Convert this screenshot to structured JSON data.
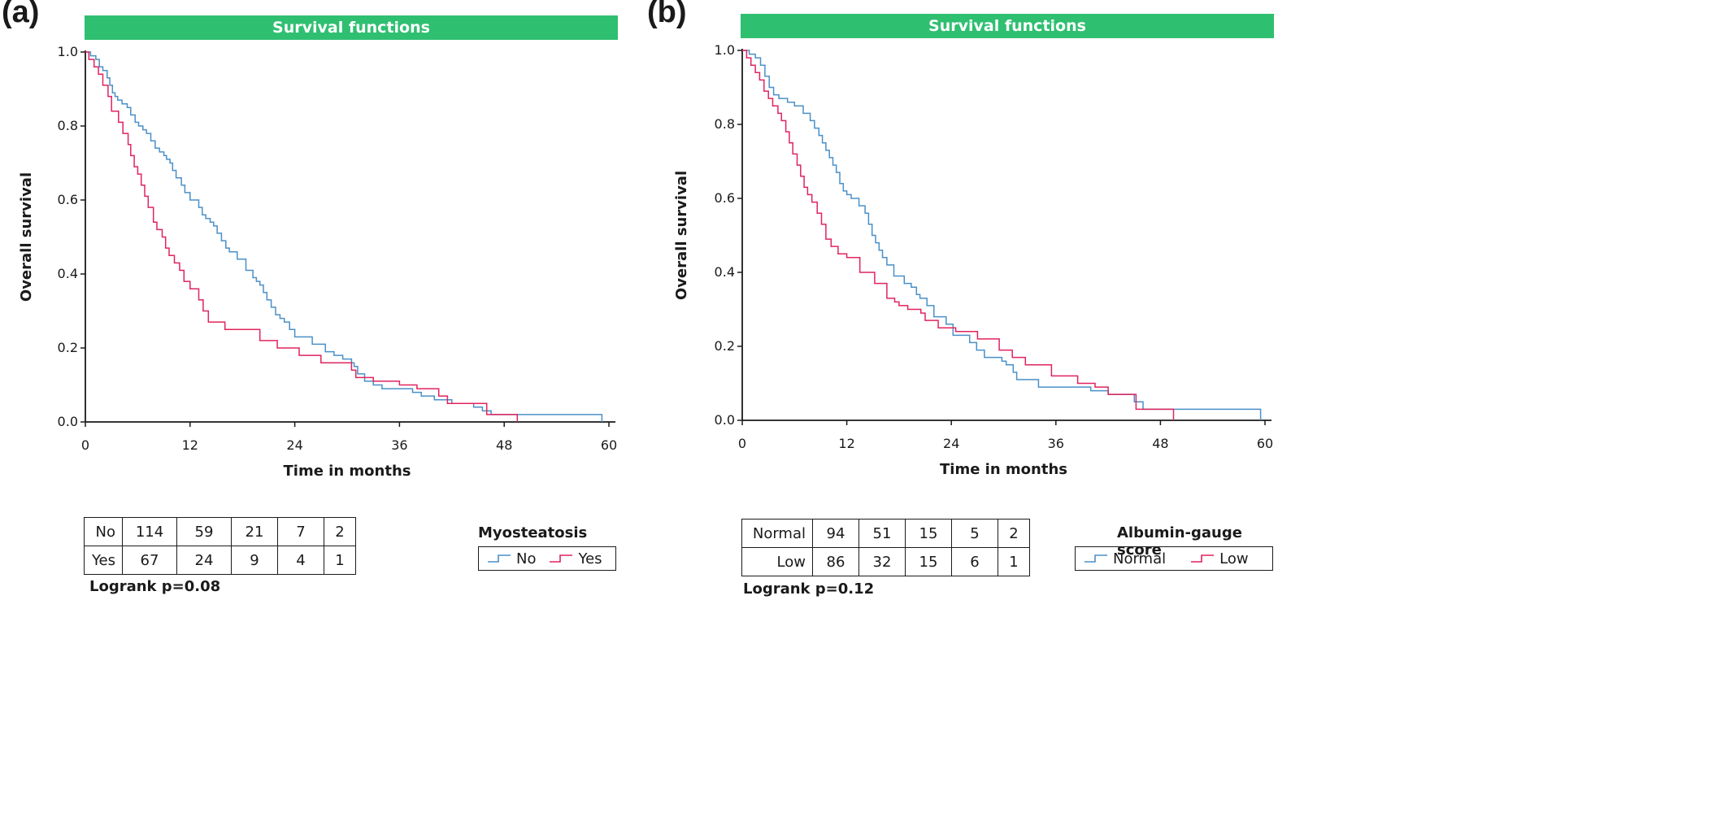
{
  "panels": [
    {
      "label": "(a)",
      "banner": "Survival functions",
      "ylabel": "Overall survival",
      "xlabel": "Time in months",
      "logrank": "Logrank p=0.08",
      "legend": {
        "title": "Myosteatosis",
        "entries": [
          {
            "name": "No",
            "color": "#4a90c8"
          },
          {
            "name": "Yes",
            "color": "#e0245e"
          }
        ]
      },
      "risk_table": [
        {
          "label": "No",
          "values": [
            "114",
            "59",
            "21",
            "7",
            "2"
          ]
        },
        {
          "label": "Yes",
          "values": [
            "67",
            "24",
            "9",
            "4",
            "1"
          ]
        }
      ]
    },
    {
      "label": "(b)",
      "banner": "Survival functions",
      "ylabel": "Overall survival",
      "xlabel": "Time in months",
      "logrank": "Logrank p=0.12",
      "legend": {
        "title": "Albumin-gauge score",
        "entries": [
          {
            "name": "Normal",
            "color": "#4a90c8"
          },
          {
            "name": "Low",
            "color": "#e0245e"
          }
        ]
      },
      "risk_table": [
        {
          "label": "Normal",
          "values": [
            "94",
            "51",
            "15",
            "5",
            "2"
          ]
        },
        {
          "label": "Low",
          "values": [
            "86",
            "32",
            "15",
            "6",
            "1"
          ]
        }
      ]
    }
  ],
  "chart_data": [
    {
      "type": "line",
      "step": true,
      "title": "Survival functions",
      "xlabel": "Time in months",
      "ylabel": "Overall survival",
      "xlim": [
        0,
        60
      ],
      "ylim": [
        0,
        1.0
      ],
      "xticks": [
        0,
        12,
        24,
        36,
        48,
        60
      ],
      "yticks": [
        0.0,
        0.2,
        0.4,
        0.6,
        0.8,
        1.0
      ],
      "ytick_labels": [
        "0.0",
        "0.2",
        "0.4",
        "0.6",
        "0.8",
        "1.0"
      ],
      "legend_title": "Myosteatosis",
      "annotation": "Logrank p=0.08",
      "series": [
        {
          "name": "No",
          "color": "#4a90c8",
          "x": [
            0,
            0.6,
            1.2,
            1.6,
            2.0,
            2.5,
            2.8,
            3.1,
            3.4,
            3.7,
            4.2,
            4.8,
            5.2,
            5.7,
            6.1,
            6.6,
            7.0,
            7.5,
            8.0,
            8.5,
            9.0,
            9.3,
            9.7,
            10.0,
            10.4,
            11.0,
            11.4,
            12.0,
            13.0,
            13.4,
            13.8,
            14.3,
            14.7,
            15.1,
            15.6,
            16.1,
            16.5,
            17.4,
            18.4,
            19.2,
            19.6,
            20.0,
            20.4,
            20.8,
            21.3,
            21.8,
            22.3,
            22.8,
            23.4,
            24.0,
            26.0,
            27.5,
            28.5,
            29.5,
            30.5,
            30.8,
            31.2,
            32.0,
            33.0,
            34.0,
            36.0,
            37.5,
            38.5,
            40.0,
            42.0,
            44.5,
            45.5,
            46.0,
            46.5,
            49.0,
            59.2
          ],
          "y": [
            1.0,
            0.99,
            0.98,
            0.96,
            0.95,
            0.93,
            0.91,
            0.89,
            0.88,
            0.87,
            0.86,
            0.85,
            0.83,
            0.81,
            0.8,
            0.79,
            0.78,
            0.76,
            0.74,
            0.73,
            0.72,
            0.71,
            0.7,
            0.68,
            0.66,
            0.64,
            0.62,
            0.6,
            0.58,
            0.56,
            0.55,
            0.54,
            0.53,
            0.51,
            0.49,
            0.47,
            0.46,
            0.44,
            0.41,
            0.39,
            0.38,
            0.37,
            0.35,
            0.33,
            0.31,
            0.29,
            0.28,
            0.27,
            0.25,
            0.23,
            0.21,
            0.19,
            0.18,
            0.17,
            0.16,
            0.15,
            0.13,
            0.11,
            0.1,
            0.09,
            0.09,
            0.08,
            0.07,
            0.06,
            0.05,
            0.04,
            0.03,
            0.03,
            0.02,
            0.02,
            0.0
          ]
        },
        {
          "name": "Yes",
          "color": "#e0245e",
          "x": [
            0,
            0.4,
            1.0,
            1.5,
            2.0,
            2.6,
            3.0,
            3.8,
            4.3,
            4.9,
            5.2,
            5.6,
            6.0,
            6.4,
            6.8,
            7.2,
            7.8,
            8.2,
            8.8,
            9.2,
            9.6,
            10.2,
            10.8,
            11.3,
            12.0,
            13.0,
            13.5,
            14.1,
            16.0,
            20.0,
            22.0,
            24.5,
            27.0,
            30.5,
            31.0,
            33.0,
            36.0,
            38.0,
            40.5,
            41.5,
            46.0,
            49.5
          ],
          "y": [
            1.0,
            0.98,
            0.96,
            0.94,
            0.91,
            0.88,
            0.84,
            0.81,
            0.78,
            0.75,
            0.72,
            0.69,
            0.67,
            0.64,
            0.61,
            0.58,
            0.54,
            0.52,
            0.5,
            0.47,
            0.45,
            0.43,
            0.41,
            0.38,
            0.36,
            0.33,
            0.3,
            0.27,
            0.25,
            0.22,
            0.2,
            0.18,
            0.16,
            0.14,
            0.12,
            0.11,
            0.1,
            0.09,
            0.07,
            0.05,
            0.02,
            0.0
          ]
        }
      ],
      "risk_table": {
        "times": [
          0,
          12,
          24,
          36,
          48
        ],
        "No": [
          114,
          59,
          21,
          7,
          2
        ],
        "Yes": [
          67,
          24,
          9,
          4,
          1
        ]
      }
    },
    {
      "type": "line",
      "step": true,
      "title": "Survival functions",
      "xlabel": "Time in months",
      "ylabel": "Overall survival",
      "xlim": [
        0,
        60
      ],
      "ylim": [
        0,
        1.0
      ],
      "xticks": [
        0,
        12,
        24,
        36,
        48,
        60
      ],
      "yticks": [
        0.0,
        0.2,
        0.4,
        0.6,
        0.8,
        1.0
      ],
      "ytick_labels": [
        "0.0",
        "0.2",
        "0.4",
        "0.6",
        "0.8",
        "1.0"
      ],
      "legend_title": "Albumin-gauge score",
      "annotation": "Logrank p=0.12",
      "series": [
        {
          "name": "Normal",
          "color": "#4a90c8",
          "x": [
            0,
            0.8,
            1.5,
            2.1,
            2.6,
            3.1,
            3.6,
            4.2,
            5.2,
            6.0,
            7.0,
            7.8,
            8.3,
            8.8,
            9.2,
            9.6,
            10.0,
            10.4,
            10.8,
            11.2,
            11.6,
            12.0,
            12.5,
            13.4,
            14.1,
            14.5,
            14.9,
            15.3,
            15.7,
            16.1,
            16.6,
            17.4,
            18.6,
            19.4,
            20.0,
            20.4,
            21.2,
            22.0,
            23.4,
            24.2,
            26.1,
            26.9,
            27.8,
            29.8,
            30.3,
            31.1,
            31.5,
            34.0,
            35.5,
            38.0,
            40.0,
            42.0,
            45.0,
            46.0,
            59.5
          ],
          "y": [
            1.0,
            0.99,
            0.98,
            0.96,
            0.93,
            0.9,
            0.88,
            0.87,
            0.86,
            0.85,
            0.83,
            0.81,
            0.79,
            0.77,
            0.75,
            0.73,
            0.71,
            0.69,
            0.67,
            0.64,
            0.62,
            0.61,
            0.6,
            0.58,
            0.56,
            0.53,
            0.5,
            0.48,
            0.46,
            0.44,
            0.42,
            0.39,
            0.37,
            0.36,
            0.34,
            0.33,
            0.31,
            0.28,
            0.26,
            0.23,
            0.21,
            0.19,
            0.17,
            0.16,
            0.15,
            0.13,
            0.11,
            0.09,
            0.09,
            0.09,
            0.08,
            0.07,
            0.05,
            0.03,
            0.0
          ]
        },
        {
          "name": "Low",
          "color": "#e0245e",
          "x": [
            0,
            0.5,
            1.0,
            1.5,
            2.0,
            2.5,
            3.0,
            3.5,
            4.1,
            4.5,
            5.0,
            5.4,
            5.8,
            6.3,
            6.7,
            7.1,
            7.5,
            8.0,
            8.6,
            9.1,
            9.6,
            10.2,
            11.0,
            12.0,
            13.5,
            15.2,
            16.6,
            17.5,
            18.0,
            19.0,
            20.5,
            21.0,
            22.5,
            24.5,
            27.0,
            29.5,
            31.0,
            32.5,
            35.5,
            38.5,
            40.5,
            42.0,
            45.2,
            49.5
          ],
          "y": [
            1.0,
            0.98,
            0.96,
            0.94,
            0.92,
            0.89,
            0.87,
            0.85,
            0.83,
            0.81,
            0.78,
            0.75,
            0.72,
            0.69,
            0.66,
            0.63,
            0.61,
            0.59,
            0.56,
            0.53,
            0.49,
            0.47,
            0.45,
            0.44,
            0.4,
            0.37,
            0.33,
            0.32,
            0.31,
            0.3,
            0.29,
            0.27,
            0.25,
            0.24,
            0.22,
            0.19,
            0.17,
            0.15,
            0.12,
            0.1,
            0.09,
            0.07,
            0.03,
            0.0
          ]
        }
      ],
      "risk_table": {
        "times": [
          0,
          12,
          24,
          36,
          48
        ],
        "Normal": [
          94,
          51,
          15,
          5,
          2
        ],
        "Low": [
          86,
          32,
          15,
          6,
          1
        ]
      }
    }
  ]
}
